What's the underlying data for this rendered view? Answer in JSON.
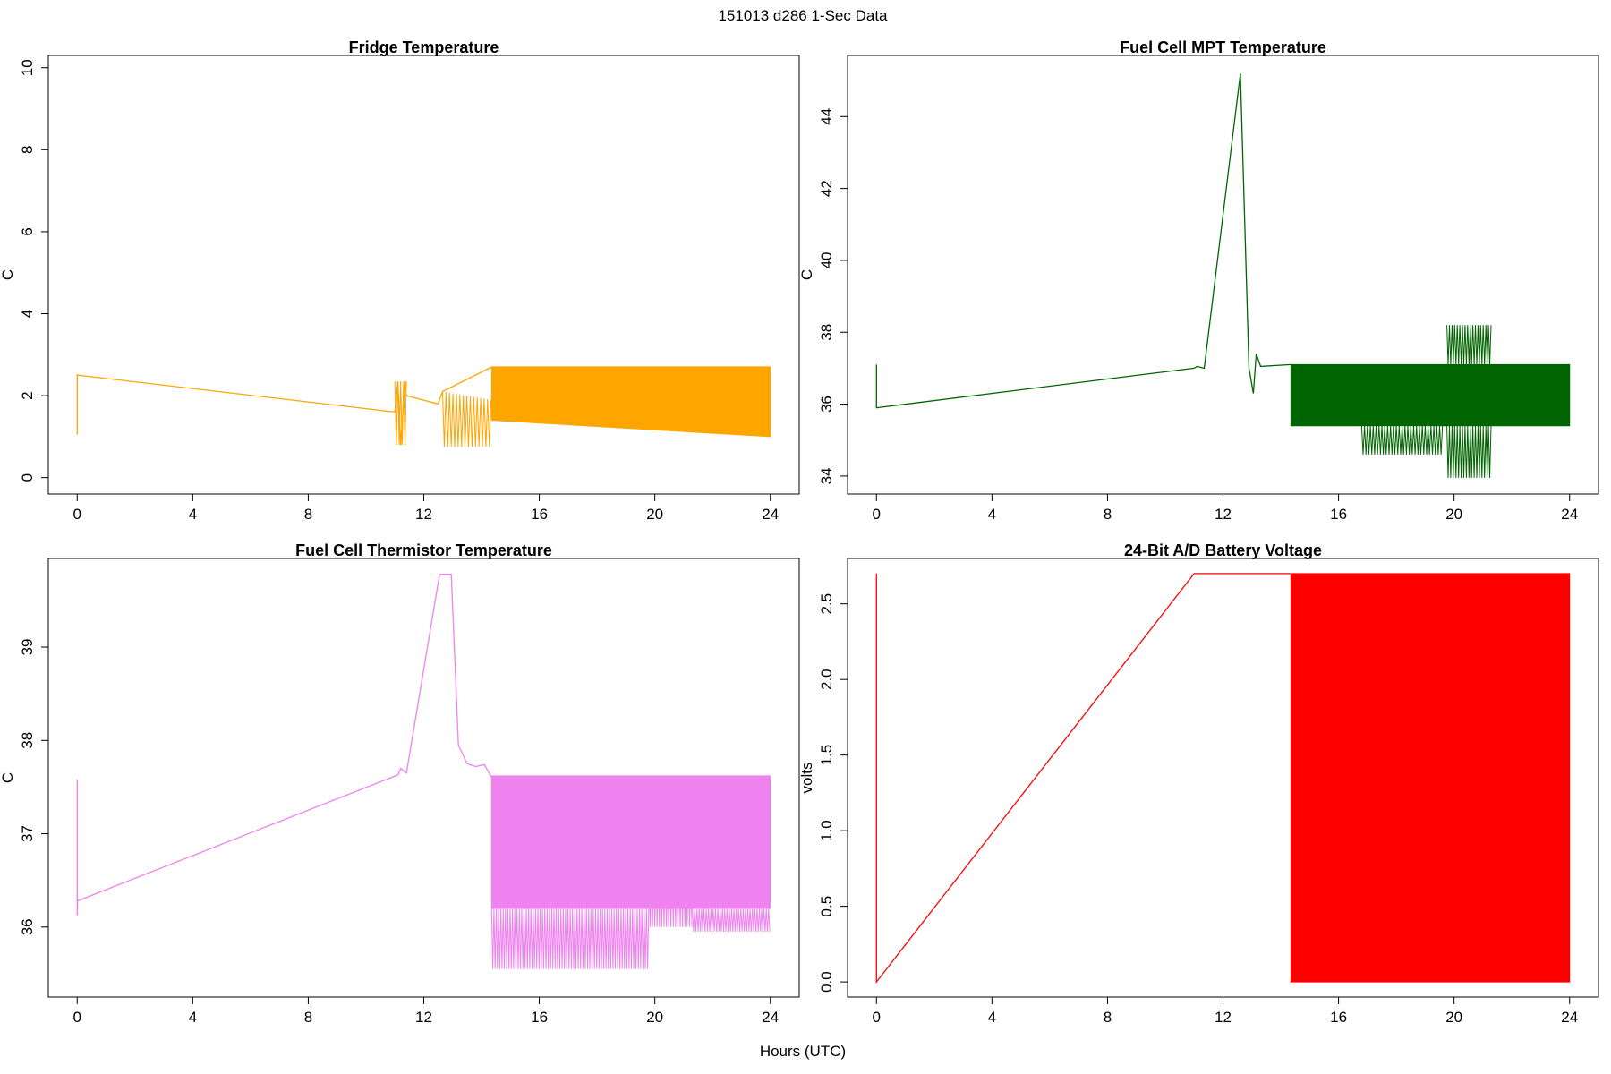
{
  "figure": {
    "suptitle": "151013   d286   1-Sec Data",
    "xlabel": "Hours (UTC)"
  },
  "chart_data": [
    {
      "type": "line",
      "title": "Fridge Temperature",
      "xlabel": "",
      "ylabel": "C",
      "xlim": [
        -1,
        25
      ],
      "ylim": [
        -0.4,
        10.3
      ],
      "xticks": [
        0,
        4,
        8,
        12,
        16,
        20,
        24
      ],
      "yticks": [
        0,
        2,
        4,
        6,
        8,
        10
      ],
      "color": "#FFA500",
      "series": [
        {
          "name": "Fridge Temperature",
          "x": [
            0,
            0,
            0.01,
            11,
            11.1,
            11.2,
            11.35,
            11.4,
            12.5,
            12.65,
            14.35,
            24
          ],
          "y": [
            1.05,
            2.52,
            2.5,
            1.6,
            2.35,
            0.8,
            2.35,
            2.0,
            1.8,
            2.1,
            2.7,
            2.7
          ]
        }
      ],
      "bands": [
        {
          "x0": 11.0,
          "x1": 11.4,
          "low": 0.8,
          "high": 2.35,
          "period": 0.1
        },
        {
          "x0": 12.65,
          "x1": 14.35,
          "low": 0.75,
          "high": 2.1,
          "high_end": 1.9,
          "period": 0.12
        },
        {
          "x0": 14.35,
          "x1": 24.0,
          "low": 1.4,
          "low_end": 1.0,
          "high": 2.7,
          "fill": true
        }
      ]
    },
    {
      "type": "line",
      "title": "Fuel Cell MPT Temperature",
      "xlabel": "",
      "ylabel": "C",
      "xlim": [
        -1,
        25
      ],
      "ylim": [
        33.5,
        45.7
      ],
      "xticks": [
        0,
        4,
        8,
        12,
        16,
        20,
        24
      ],
      "yticks": [
        34,
        36,
        38,
        40,
        42,
        44
      ],
      "color": "#006400",
      "series": [
        {
          "name": "Fuel Cell MPT Temperature",
          "x": [
            0,
            0,
            0.01,
            11.0,
            11.1,
            11.35,
            12.6,
            12.9,
            13.05,
            13.15,
            13.3,
            14.35
          ],
          "y": [
            37.1,
            35.9,
            35.9,
            37.0,
            37.05,
            37.0,
            45.2,
            37.0,
            36.3,
            37.4,
            37.05,
            37.1
          ]
        }
      ],
      "bands": [
        {
          "x0": 14.35,
          "x1": 24.0,
          "low": 35.4,
          "high": 37.1,
          "fill": true
        },
        {
          "x0": 16.8,
          "x1": 19.6,
          "low": 34.6,
          "high": 35.4,
          "period": 0.1
        },
        {
          "x0": 19.75,
          "x1": 21.3,
          "low": 33.95,
          "high": 35.4,
          "period": 0.09
        },
        {
          "x0": 19.75,
          "x1": 21.3,
          "low": 37.1,
          "high": 38.2,
          "period": 0.09
        }
      ]
    },
    {
      "type": "line",
      "title": "Fuel Cell Thermistor Temperature",
      "xlabel": "",
      "ylabel": "C",
      "xlim": [
        -1,
        25
      ],
      "ylim": [
        35.25,
        39.95
      ],
      "xticks": [
        0,
        4,
        8,
        12,
        16,
        20,
        24
      ],
      "yticks": [
        36,
        37,
        38,
        39
      ],
      "color": "#EE82EE",
      "series": [
        {
          "name": "Fuel Cell Thermistor Temperature",
          "x": [
            0,
            0,
            0.01,
            11.1,
            11.2,
            11.4,
            12.55,
            12.6,
            12.95,
            13.2,
            13.5,
            13.8,
            14.1,
            14.35
          ],
          "y": [
            37.58,
            36.12,
            36.28,
            37.63,
            37.7,
            37.65,
            39.78,
            39.78,
            39.78,
            37.95,
            37.75,
            37.72,
            37.74,
            37.6
          ]
        }
      ],
      "bands": [
        {
          "x0": 14.35,
          "x1": 24.0,
          "low": 36.2,
          "high": 37.62,
          "fill": true
        },
        {
          "x0": 14.35,
          "x1": 19.8,
          "low": 35.55,
          "high": 36.2,
          "period": 0.08
        },
        {
          "x0": 19.8,
          "x1": 21.3,
          "low": 36.0,
          "high": 36.6,
          "period": 0.08
        },
        {
          "x0": 21.3,
          "x1": 24.0,
          "low": 35.95,
          "high": 36.2,
          "period": 0.08
        }
      ]
    },
    {
      "type": "line",
      "title": "24-Bit A/D Battery Voltage",
      "xlabel": "",
      "ylabel": "volts",
      "xlim": [
        -1,
        25
      ],
      "ylim": [
        -0.1,
        2.8
      ],
      "xticks": [
        0,
        4,
        8,
        12,
        16,
        20,
        24
      ],
      "yticks": [
        0.0,
        0.5,
        1.0,
        1.5,
        2.0,
        2.5
      ],
      "ytick_labels": [
        "0.0",
        "0.5",
        "1.0",
        "1.5",
        "2.0",
        "2.5"
      ],
      "color": "#FF0000",
      "series": [
        {
          "name": "24-Bit A/D Battery Voltage",
          "x": [
            0,
            0,
            11.0,
            14.35
          ],
          "y": [
            2.7,
            0.0,
            2.7,
            2.7
          ]
        }
      ],
      "bands": [
        {
          "x0": 14.35,
          "x1": 24.0,
          "low": 0.0,
          "high": 2.7,
          "fill": true
        }
      ]
    }
  ]
}
